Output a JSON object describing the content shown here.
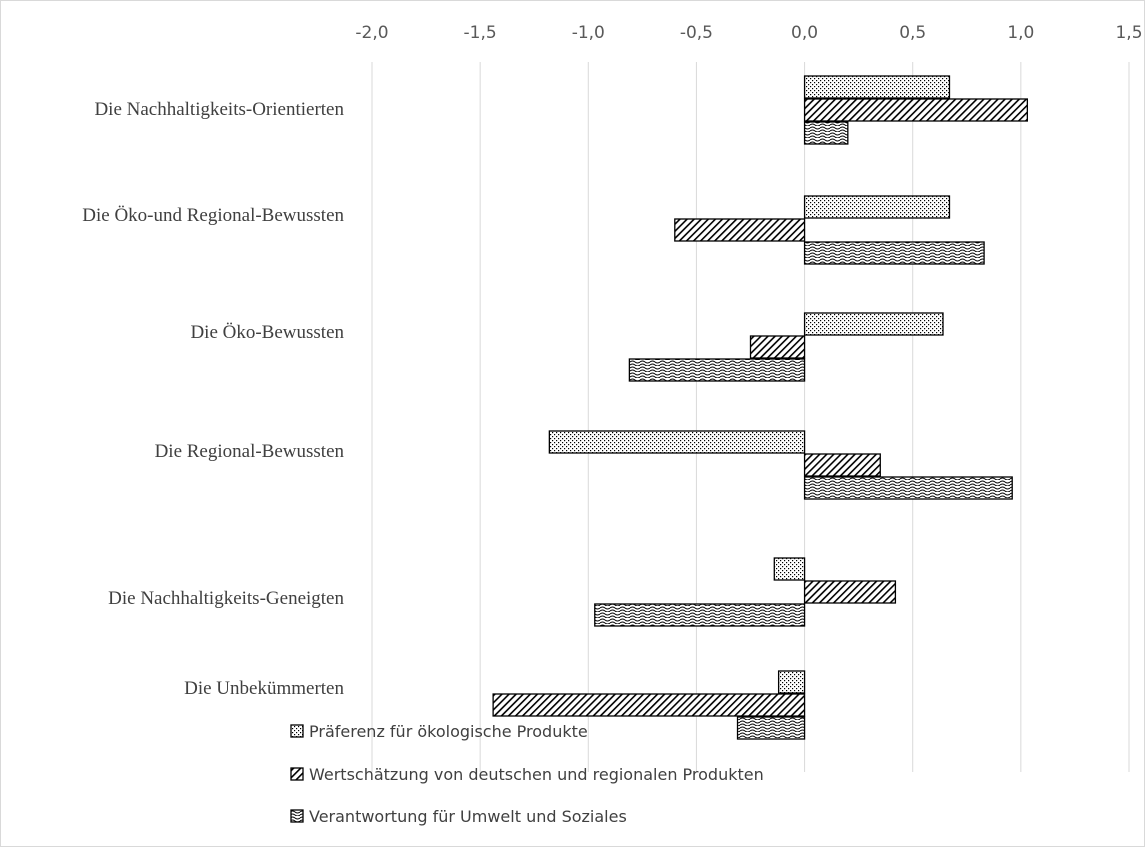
{
  "chart_data": {
    "type": "bar",
    "orientation": "horizontal",
    "grid": true,
    "legend_position": "bottom",
    "xlim": [
      -2.0,
      1.5
    ],
    "x_ticks": [
      -2.0,
      -1.5,
      -1.0,
      -0.5,
      0.0,
      0.5,
      1.0,
      1.5
    ],
    "x_tick_labels": [
      "-2,0",
      "-1,5",
      "-1,0",
      "-0,5",
      "0,0",
      "0,5",
      "1,0",
      "1,5"
    ],
    "categories": [
      "Die Nachhaltigkeits-Orientierten",
      "Die Öko-und Regional-Bewussten",
      "Die Öko-Bewussten",
      "Die Regional-Bewussten",
      "Die Nachhaltigkeits-Geneigten",
      "Die Unbekümmerten"
    ],
    "series": [
      {
        "name": "Präferenz für ökologische Produkte",
        "pattern": "dots",
        "values": [
          0.67,
          0.67,
          0.64,
          -1.18,
          -0.14,
          -0.12
        ]
      },
      {
        "name": "Wertschätzung von deutschen und regionalen Produkten",
        "pattern": "diagonal",
        "values": [
          1.03,
          -0.6,
          -0.25,
          0.35,
          0.42,
          -1.44
        ]
      },
      {
        "name": "Verantwortung für Umwelt und Soziales",
        "pattern": "waves",
        "values": [
          0.2,
          0.83,
          -0.81,
          0.96,
          -0.97,
          -0.31
        ]
      }
    ],
    "colors": {
      "bar_stroke": "#000000",
      "pattern_ink": "#000000",
      "grid": "#d9d9d9",
      "text": "#595959"
    }
  }
}
